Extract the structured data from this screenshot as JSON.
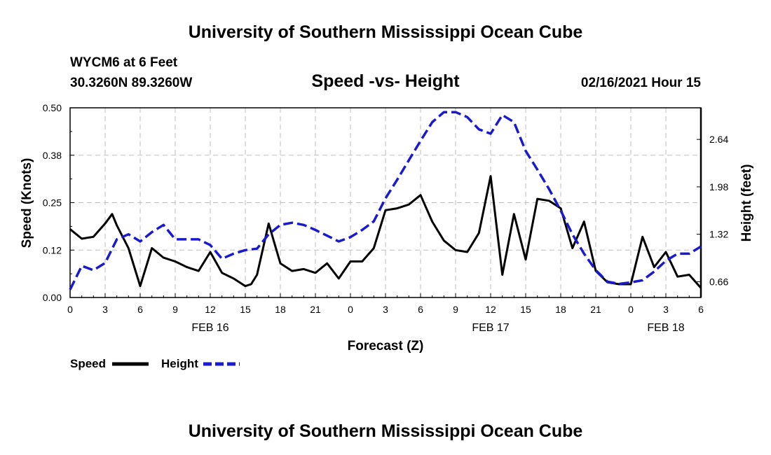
{
  "header": {
    "title_top": "University of Southern Mississippi Ocean Cube",
    "station": "WYCM6 at 6 Feet",
    "coords": "30.3260N 89.3260W",
    "subtitle": "Speed -vs- Height",
    "datetime": "02/16/2021 Hour 15",
    "title_bottom": "University of Southern Mississippi Ocean Cube"
  },
  "colors": {
    "speed": "#000000",
    "height": "#1a1acd"
  },
  "chart_data": {
    "type": "line",
    "title": "Speed -vs- Height",
    "xlabel": "Forecast (Z)",
    "ylabel": "Speed (Knots)",
    "y2label": "Height (feet)",
    "xlim": [
      0,
      54
    ],
    "ylim": [
      0,
      0.5
    ],
    "y2lim": [
      0.44,
      3.08
    ],
    "yticks": [
      "0.00",
      "0.12",
      "0.25",
      "0.38",
      "0.50"
    ],
    "yticks_values": [
      0,
      0.125,
      0.25,
      0.375,
      0.5
    ],
    "y2ticks": [
      "0.66",
      "1.32",
      "1.98",
      "2.64"
    ],
    "y2ticks_values": [
      0.66,
      1.32,
      1.98,
      2.64
    ],
    "xticks": [
      "0",
      "3",
      "6",
      "9",
      "12",
      "15",
      "18",
      "21",
      "0",
      "3",
      "6",
      "9",
      "12",
      "15",
      "18",
      "21",
      "0",
      "3",
      "6"
    ],
    "xticks_values": [
      0,
      3,
      6,
      9,
      12,
      15,
      18,
      21,
      24,
      27,
      30,
      33,
      36,
      39,
      42,
      45,
      48,
      51,
      54
    ],
    "date_labels": [
      {
        "label": "FEB 16",
        "x": 12
      },
      {
        "label": "FEB 17",
        "x": 36
      },
      {
        "label": "FEB 18",
        "x": 51
      }
    ],
    "legend": [
      {
        "name": "Speed",
        "style": "solid"
      },
      {
        "name": "Height",
        "style": "dashed"
      }
    ],
    "series": [
      {
        "name": "Speed",
        "axis": "left",
        "x": [
          0,
          1,
          2,
          3,
          3.6,
          4,
          5,
          6,
          7,
          8,
          9,
          10,
          11,
          12,
          13,
          14,
          15,
          15.5,
          16,
          17,
          18,
          19,
          20,
          21,
          22,
          23,
          24,
          25,
          26,
          27,
          28,
          29,
          30,
          31,
          32,
          33,
          34,
          35,
          36,
          37,
          38,
          39,
          40,
          41,
          42,
          43,
          44,
          45,
          46,
          47,
          48,
          49,
          50,
          51,
          52,
          53,
          54
        ],
        "values": [
          0.18,
          0.155,
          0.16,
          0.195,
          0.22,
          0.19,
          0.13,
          0.03,
          0.13,
          0.105,
          0.095,
          0.08,
          0.07,
          0.12,
          0.065,
          0.05,
          0.03,
          0.035,
          0.06,
          0.195,
          0.09,
          0.07,
          0.075,
          0.065,
          0.09,
          0.05,
          0.095,
          0.095,
          0.13,
          0.23,
          0.235,
          0.245,
          0.27,
          0.2,
          0.15,
          0.125,
          0.12,
          0.17,
          0.32,
          0.06,
          0.22,
          0.1,
          0.26,
          0.255,
          0.235,
          0.13,
          0.2,
          0.07,
          0.04,
          0.035,
          0.035,
          0.16,
          0.08,
          0.12,
          0.055,
          0.06,
          0.025
        ]
      },
      {
        "name": "Height",
        "axis": "right",
        "x": [
          0,
          1,
          2,
          3,
          4,
          5,
          6,
          7,
          8,
          9,
          10,
          11,
          12,
          13,
          14,
          15,
          16,
          17,
          18,
          19,
          20,
          21,
          22,
          23,
          24,
          25,
          26,
          27,
          28,
          29,
          30,
          31,
          32,
          33,
          34,
          35,
          36,
          37,
          38,
          39,
          40,
          41,
          42,
          43,
          44,
          45,
          46,
          47,
          48,
          49,
          50,
          51,
          52,
          53,
          54
        ],
        "values": [
          0.55,
          0.88,
          0.82,
          0.92,
          1.25,
          1.32,
          1.22,
          1.35,
          1.45,
          1.25,
          1.25,
          1.25,
          1.17,
          0.98,
          1.05,
          1.1,
          1.12,
          1.32,
          1.45,
          1.48,
          1.45,
          1.38,
          1.3,
          1.22,
          1.28,
          1.38,
          1.5,
          1.82,
          2.08,
          2.35,
          2.62,
          2.88,
          3.02,
          3.02,
          2.95,
          2.78,
          2.72,
          2.98,
          2.88,
          2.48,
          2.22,
          1.95,
          1.65,
          1.32,
          1.05,
          0.82,
          0.66,
          0.63,
          0.65,
          0.68,
          0.8,
          0.95,
          1.05,
          1.05,
          1.15
        ]
      }
    ]
  }
}
